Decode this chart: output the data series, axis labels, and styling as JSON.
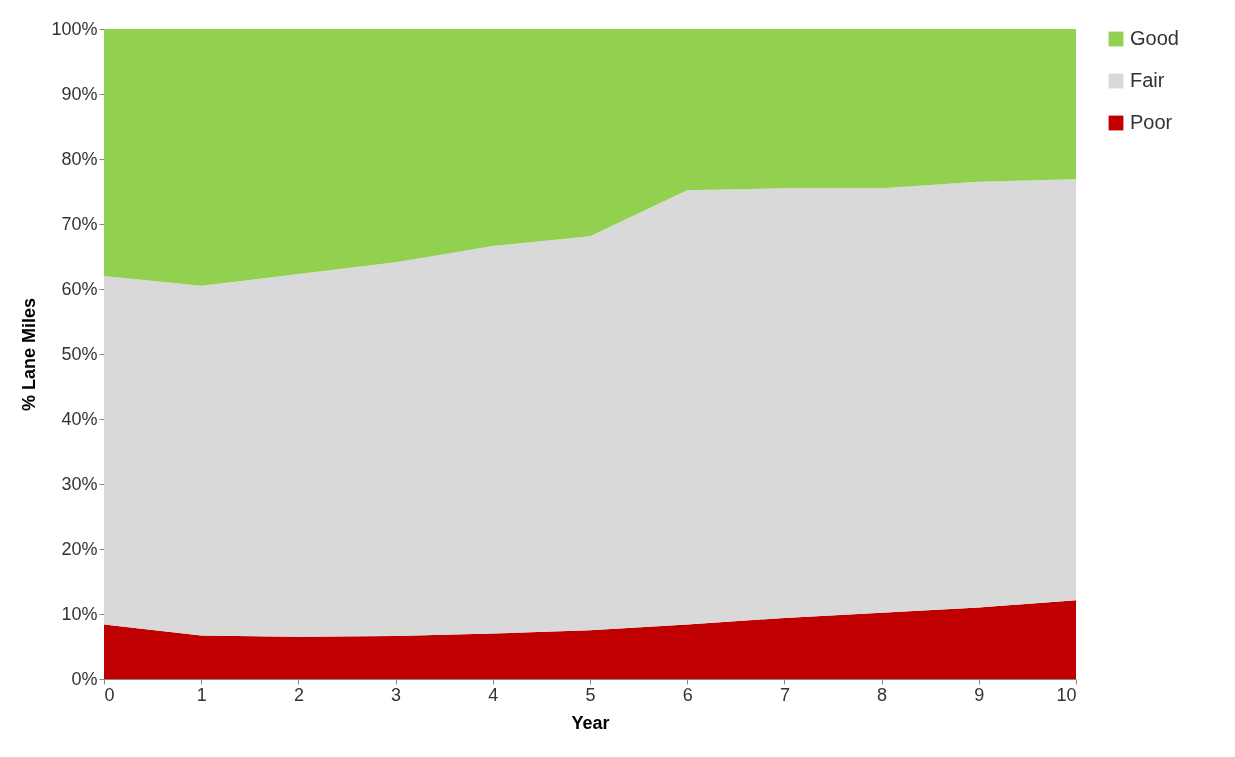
{
  "chart_data": {
    "type": "area",
    "stacked": true,
    "xlabel": "Year",
    "ylabel": "% Lane Miles",
    "x": [
      0,
      1,
      2,
      3,
      4,
      5,
      6,
      7,
      8,
      9,
      10
    ],
    "series": [
      {
        "name": "Poor",
        "color": "#c00000",
        "values": [
          8.4,
          6.7,
          6.5,
          6.6,
          7.0,
          7.5,
          8.4,
          9.4,
          10.2,
          11.0,
          12.1
        ]
      },
      {
        "name": "Fair",
        "color": "#d9d9d9",
        "values": [
          53.6,
          53.8,
          55.8,
          57.5,
          59.6,
          60.6,
          66.8,
          66.1,
          65.3,
          65.5,
          64.8
        ]
      },
      {
        "name": "Good",
        "color": "#92d050",
        "values": [
          38.0,
          39.5,
          37.7,
          35.9,
          33.4,
          31.9,
          24.8,
          24.5,
          24.5,
          23.5,
          23.1
        ]
      }
    ],
    "xlim": [
      0,
      10
    ],
    "xticks": [
      0,
      1,
      2,
      3,
      4,
      5,
      6,
      7,
      8,
      9,
      10
    ],
    "ylim": [
      0,
      100
    ],
    "yticks": [
      {
        "value": 0,
        "label": "0%"
      },
      {
        "value": 10,
        "label": "10%"
      },
      {
        "value": 20,
        "label": "20%"
      },
      {
        "value": 30,
        "label": "30%"
      },
      {
        "value": 40,
        "label": "40%"
      },
      {
        "value": 50,
        "label": "50%"
      },
      {
        "value": 60,
        "label": "60%"
      },
      {
        "value": 70,
        "label": "70%"
      },
      {
        "value": 80,
        "label": "80%"
      },
      {
        "value": 90,
        "label": "90%"
      },
      {
        "value": 100,
        "label": "100%"
      }
    ],
    "grid": false,
    "legend": "right"
  }
}
